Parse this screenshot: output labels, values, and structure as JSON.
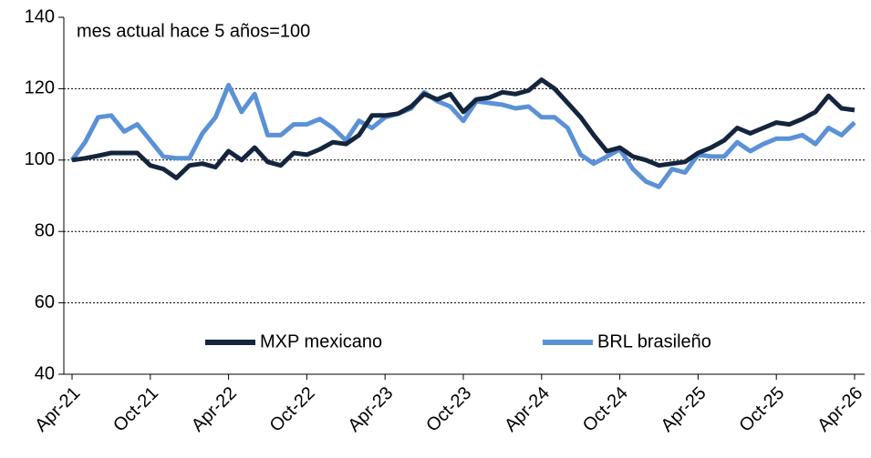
{
  "chart_data": {
    "type": "line",
    "annotation": "mes actual hace 5 años=100",
    "categories": [
      "Apr-21",
      null,
      null,
      null,
      null,
      null,
      "Oct-21",
      null,
      null,
      null,
      null,
      null,
      "Apr-22",
      null,
      null,
      null,
      null,
      null,
      "Oct-22",
      null,
      null,
      null,
      null,
      null,
      "Apr-23",
      null,
      null,
      null,
      null,
      null,
      "Oct-23",
      null,
      null,
      null,
      null,
      null,
      "Apr-24",
      null,
      null,
      null,
      null,
      null,
      "Oct-24",
      null,
      null,
      null,
      null,
      null,
      "Apr-25",
      null,
      null,
      null,
      null,
      null,
      "Oct-25",
      null,
      null,
      null,
      null,
      null,
      "Apr-26"
    ],
    "series": [
      {
        "name": "MXP mexicano",
        "color": "#14253d",
        "values": [
          100,
          100.5,
          101.2,
          102,
          102,
          102,
          98.5,
          97.5,
          95,
          98.5,
          99,
          98,
          102.5,
          100,
          103.5,
          99.5,
          98.5,
          102,
          101.5,
          103,
          105,
          104.5,
          107,
          112.5,
          112.5,
          113,
          115,
          118.5,
          117,
          118.5,
          113.5,
          117,
          117.5,
          119,
          118.5,
          119.5,
          122.5,
          120,
          116,
          112,
          107,
          102.5,
          103.5,
          101,
          100,
          98.5,
          99,
          99.5,
          102,
          103.5,
          105.5,
          109,
          107.5,
          109,
          110.5,
          110,
          111.5,
          113.5,
          118,
          114.5,
          114
        ]
      },
      {
        "name": "BRL brasileño",
        "color": "#5b91d6",
        "values": [
          100,
          105,
          112,
          112.5,
          108,
          110,
          105.5,
          101,
          100.5,
          100.5,
          107.5,
          112,
          121,
          113.5,
          118.5,
          107,
          107,
          110,
          110,
          111.5,
          109,
          105.5,
          111,
          109,
          112,
          113,
          114.5,
          119,
          116.5,
          115,
          111,
          116.5,
          116,
          115.5,
          114.5,
          115,
          112,
          112,
          109,
          101.5,
          99,
          101,
          103,
          97.5,
          94,
          92.5,
          97.5,
          96.5,
          101.5,
          101,
          101,
          105,
          102.5,
          104.5,
          106,
          106,
          107,
          104.5,
          109,
          107,
          110.5
        ]
      }
    ],
    "ylim": [
      40,
      140
    ],
    "yticks": [
      40,
      60,
      80,
      100,
      120,
      140
    ],
    "grid": true
  }
}
